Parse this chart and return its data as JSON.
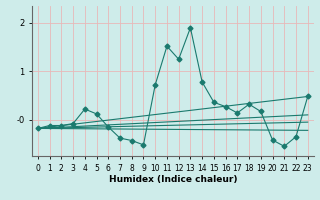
{
  "xlabel": "Humidex (Indice chaleur)",
  "bg_color": "#ceecea",
  "grid_color_v": "#e8b8b8",
  "grid_color_h": "#e8b8b8",
  "line_color": "#1a7a6e",
  "xlim": [
    -0.5,
    23.5
  ],
  "ylim": [
    -0.75,
    2.35
  ],
  "yticks": [
    2.0,
    1.0,
    0.0
  ],
  "ytick_labels": [
    "2",
    "1",
    "-0"
  ],
  "xticks": [
    0,
    1,
    2,
    3,
    4,
    5,
    6,
    7,
    8,
    9,
    10,
    11,
    12,
    13,
    14,
    15,
    16,
    17,
    18,
    19,
    20,
    21,
    22,
    23
  ],
  "main_series_x": [
    0,
    1,
    2,
    3,
    4,
    5,
    6,
    7,
    8,
    9,
    10,
    11,
    12,
    13,
    14,
    15,
    16,
    17,
    18,
    19,
    20,
    21,
    22,
    23
  ],
  "main_series_y": [
    -0.18,
    -0.12,
    -0.12,
    -0.08,
    0.22,
    0.12,
    -0.15,
    -0.38,
    -0.43,
    -0.52,
    0.72,
    1.52,
    1.25,
    1.9,
    0.78,
    0.36,
    0.27,
    0.14,
    0.32,
    0.17,
    -0.42,
    -0.55,
    -0.35,
    0.48
  ],
  "line1_x": [
    0,
    23
  ],
  "line1_y": [
    -0.18,
    0.48
  ],
  "line2_x": [
    0,
    23
  ],
  "line2_y": [
    -0.18,
    0.1
  ],
  "line3_x": [
    0,
    23
  ],
  "line3_y": [
    -0.18,
    -0.05
  ],
  "line4_x": [
    0,
    23
  ],
  "line4_y": [
    -0.18,
    -0.22
  ],
  "marker": "D",
  "markersize": 2.5,
  "linewidth": 0.8
}
